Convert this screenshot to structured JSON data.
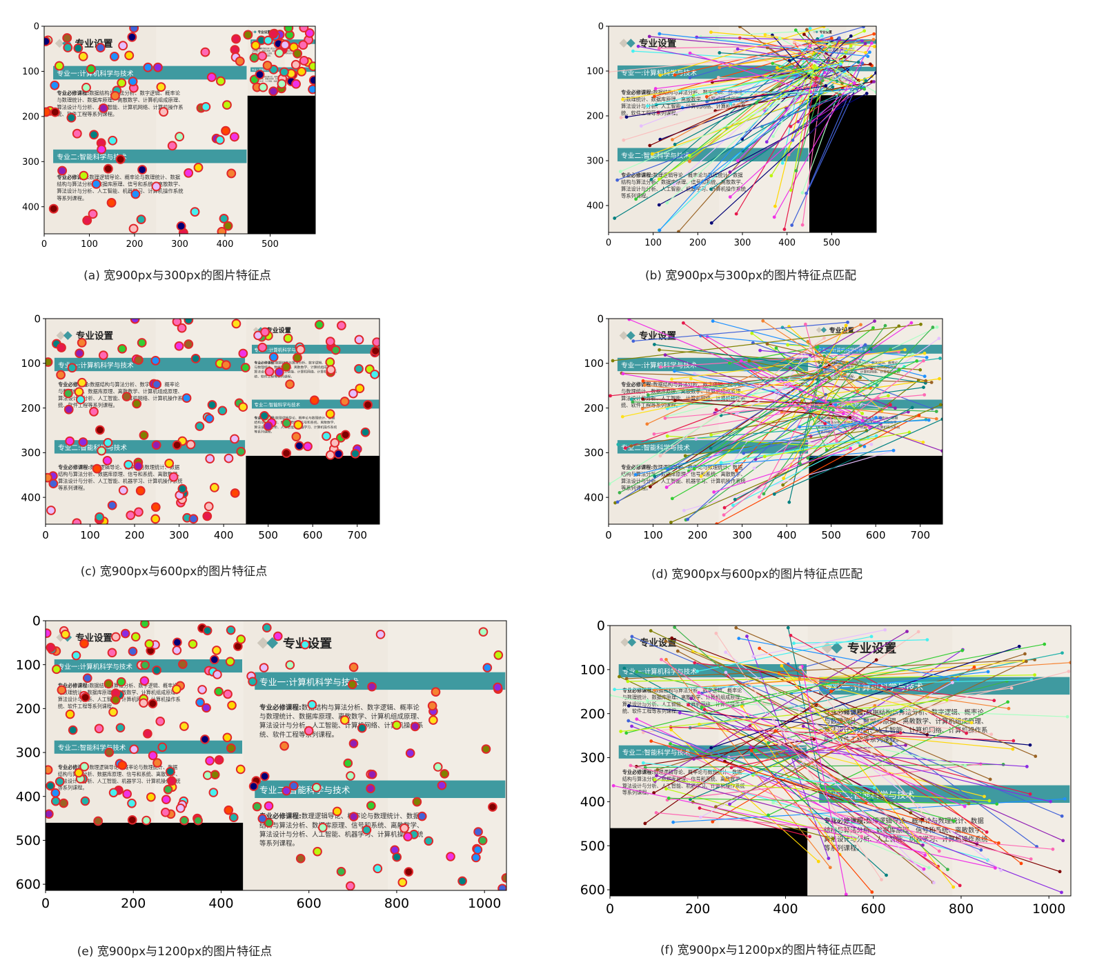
{
  "figure": {
    "slide": {
      "title": "专业设置",
      "major1_banner": "专业一:计算机科学与技术",
      "major1_label": "专业必修课程:",
      "major1_lines": [
        "数据结构与算法分析、数字逻辑、概率论",
        "与数理统计、数据库原理、离散数学、计算机组成原理、",
        "算法设计与分析、人工智能、计算机网络、计算机操作系",
        "统、软件工程等系列课程。"
      ],
      "major2_banner": "专业二:智能科学与技术",
      "major2_label": "专业必修课程:",
      "major2_lines": [
        "数理逻辑导论、概率论与数理统计、数据",
        "结构与算法分析、数据库原理、信号和系统、离散数学、",
        "算法设计与分析、人工智能、机器学习、计算机操作系统",
        "等系列课程。"
      ]
    },
    "colors": {
      "banner": "#3f9aa0",
      "slide_bg": "#efe9e0",
      "black_pad": "#000000",
      "keypoint_edge": "#e0282c"
    },
    "panels": [
      {
        "id": "a",
        "caption": "(a) 宽900px与300px的图片特征点",
        "type": "keypoints",
        "xticks": [
          "0",
          "100",
          "200",
          "300",
          "400",
          "500"
        ],
        "yticks": [
          "0",
          "100",
          "200",
          "300",
          "400"
        ],
        "xlim": [
          0,
          600
        ],
        "ylim": [
          460,
          0
        ],
        "left_width": 450,
        "right_width": 150,
        "right_height": 154
      },
      {
        "id": "b",
        "caption": "(b) 宽900px与300px的图片特征点匹配",
        "type": "matches",
        "xticks": [
          "0",
          "100",
          "200",
          "300",
          "400",
          "500"
        ],
        "yticks": [
          "0",
          "100",
          "200",
          "300",
          "400"
        ],
        "xlim": [
          0,
          600
        ],
        "ylim": [
          460,
          0
        ],
        "left_width": 450,
        "right_width": 150,
        "right_height": 154
      },
      {
        "id": "c",
        "caption": "(c) 宽900px与600px的图片特征点",
        "type": "keypoints",
        "xticks": [
          "0",
          "100",
          "200",
          "300",
          "400",
          "500",
          "600",
          "700"
        ],
        "yticks": [
          "0",
          "100",
          "200",
          "300",
          "400"
        ],
        "xlim": [
          0,
          750
        ],
        "ylim": [
          460,
          0
        ],
        "left_width": 450,
        "right_width": 300,
        "right_height": 307
      },
      {
        "id": "d",
        "caption": "(d) 宽900px与600px的图片特征点匹配",
        "type": "matches",
        "xticks": [
          "0",
          "100",
          "200",
          "300",
          "400",
          "500",
          "600",
          "700"
        ],
        "yticks": [
          "0",
          "100",
          "200",
          "300",
          "400"
        ],
        "xlim": [
          0,
          750
        ],
        "ylim": [
          460,
          0
        ],
        "left_width": 450,
        "right_width": 300,
        "right_height": 307
      },
      {
        "id": "e",
        "caption": "(e) 宽900px与1200px的图片特征点",
        "type": "keypoints",
        "xticks": [
          "0",
          "200",
          "400",
          "600",
          "800",
          "1000"
        ],
        "yticks": [
          "0",
          "100",
          "200",
          "300",
          "400",
          "500",
          "600"
        ],
        "xlim": [
          0,
          1050
        ],
        "ylim": [
          614,
          0
        ],
        "left_width": 450,
        "right_width": 600,
        "right_height": 614
      },
      {
        "id": "f",
        "caption": "(f) 宽900px与1200px的图片特征点匹配",
        "type": "matches",
        "xticks": [
          "0",
          "200",
          "400",
          "600",
          "800",
          "1000"
        ],
        "yticks": [
          "0",
          "100",
          "200",
          "300",
          "400",
          "500",
          "600"
        ],
        "xlim": [
          0,
          1050
        ],
        "ylim": [
          614,
          0
        ],
        "left_width": 450,
        "right_width": 600,
        "right_height": 614
      }
    ]
  }
}
